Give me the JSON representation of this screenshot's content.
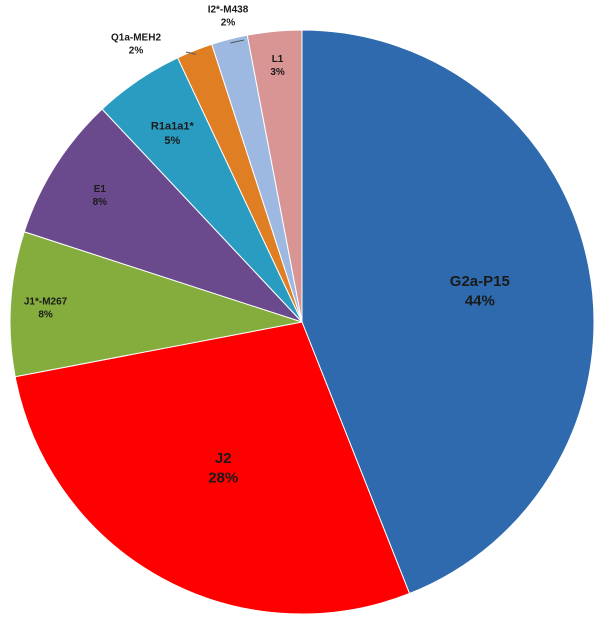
{
  "chart_data": {
    "type": "pie",
    "title": "",
    "start_angle_deg": 0,
    "direction": "clockwise",
    "slices": [
      {
        "label": "G2a-P15",
        "value": 44,
        "value_label": "44%",
        "color": "#2E6AAD"
      },
      {
        "label": "J2",
        "value": 28,
        "value_label": "28%",
        "color": "#FF0000"
      },
      {
        "label": "J1*-M267",
        "value": 8,
        "value_label": "8%",
        "color": "#85AD3D"
      },
      {
        "label": "E1",
        "value": 8,
        "value_label": "8%",
        "color": "#6A4A8C"
      },
      {
        "label": "R1a1a1*",
        "value": 5,
        "value_label": "5%",
        "color": "#2B9CC1"
      },
      {
        "label": "Q1a-MEH2",
        "value": 2,
        "value_label": "2%",
        "color": "#E07E23"
      },
      {
        "label": "I2*-M438",
        "value": 2,
        "value_label": "2%",
        "color": "#9DB9E2"
      },
      {
        "label": "L1",
        "value": 3,
        "value_label": "3%",
        "color": "#D99594"
      }
    ],
    "legend": "none",
    "grid": false
  }
}
